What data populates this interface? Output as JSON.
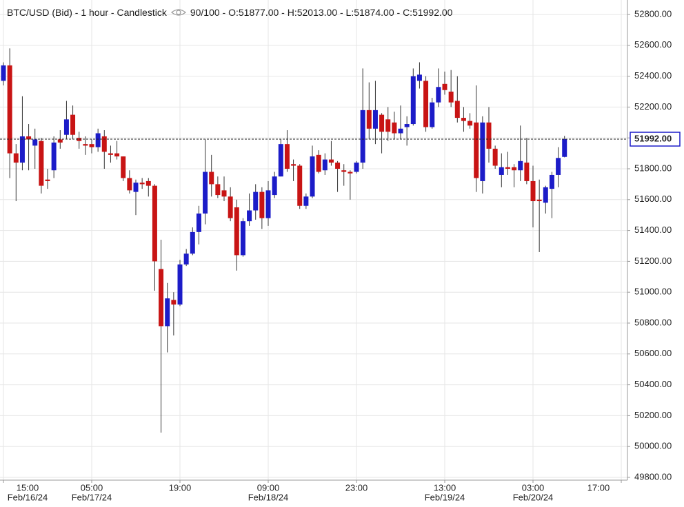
{
  "chart_data": {
    "type": "candlestick",
    "title": "BTC/USD (Bid) - 1 hour - Candlestick",
    "subtitle": "90/100 - O:51877.00 - H:52013.00 - L:51874.00 - C:51992.00",
    "up_color": "#1c1cc8",
    "down_color": "#c81414",
    "grid": true,
    "x": [
      "Feb/16/24 15:00",
      "Feb/16/24 16:00",
      "Feb/16/24 17:00",
      "Feb/16/24 18:00",
      "Feb/16/24 19:00",
      "Feb/16/24 20:00",
      "Feb/16/24 21:00",
      "Feb/16/24 22:00",
      "Feb/16/24 23:00",
      "Feb/17/24 00:00",
      "Feb/17/24 01:00",
      "Feb/17/24 02:00",
      "Feb/17/24 03:00",
      "Feb/17/24 04:00",
      "Feb/17/24 05:00",
      "Feb/17/24 06:00",
      "Feb/17/24 07:00",
      "Feb/17/24 08:00",
      "Feb/17/24 09:00",
      "Feb/17/24 10:00",
      "Feb/17/24 11:00",
      "Feb/17/24 12:00",
      "Feb/17/24 13:00",
      "Feb/17/24 14:00",
      "Feb/17/24 15:00",
      "Feb/17/24 16:00",
      "Feb/17/24 17:00",
      "Feb/17/24 18:00",
      "Feb/17/24 19:00",
      "Feb/17/24 20:00",
      "Feb/17/24 21:00",
      "Feb/17/24 22:00",
      "Feb/17/24 23:00",
      "Feb/18/24 00:00",
      "Feb/18/24 01:00",
      "Feb/18/24 02:00",
      "Feb/18/24 03:00",
      "Feb/18/24 04:00",
      "Feb/18/24 05:00",
      "Feb/18/24 06:00",
      "Feb/18/24 07:00",
      "Feb/18/24 08:00",
      "Feb/18/24 09:00",
      "Feb/18/24 10:00",
      "Feb/18/24 11:00",
      "Feb/18/24 12:00",
      "Feb/18/24 13:00",
      "Feb/18/24 14:00",
      "Feb/18/24 15:00",
      "Feb/18/24 16:00",
      "Feb/18/24 17:00",
      "Feb/18/24 18:00",
      "Feb/18/24 19:00",
      "Feb/18/24 20:00",
      "Feb/18/24 21:00",
      "Feb/18/24 22:00",
      "Feb/18/24 23:00",
      "Feb/19/24 00:00",
      "Feb/19/24 01:00",
      "Feb/19/24 02:00",
      "Feb/19/24 03:00",
      "Feb/19/24 04:00",
      "Feb/19/24 05:00",
      "Feb/19/24 06:00",
      "Feb/19/24 07:00",
      "Feb/19/24 08:00",
      "Feb/19/24 09:00",
      "Feb/19/24 10:00",
      "Feb/19/24 11:00",
      "Feb/19/24 12:00",
      "Feb/19/24 13:00",
      "Feb/19/24 14:00",
      "Feb/19/24 15:00",
      "Feb/19/24 16:00",
      "Feb/19/24 17:00",
      "Feb/19/24 18:00",
      "Feb/19/24 19:00",
      "Feb/19/24 20:00",
      "Feb/19/24 21:00",
      "Feb/19/24 22:00",
      "Feb/19/24 23:00",
      "Feb/20/24 00:00",
      "Feb/20/24 01:00",
      "Feb/20/24 02:00",
      "Feb/20/24 03:00",
      "Feb/20/24 04:00",
      "Feb/20/24 05:00",
      "Feb/20/24 06:00",
      "Feb/20/24 07:00",
      "Feb/20/24 08:00"
    ],
    "open": [
      52370,
      52470,
      51900,
      51840,
      52010,
      51950,
      51980,
      51730,
      51790,
      51990,
      52020,
      52150,
      52000,
      51960,
      51960,
      51940,
      52010,
      51900,
      51900,
      51880,
      51740,
      51650,
      51710,
      51720,
      51690,
      51150,
      50780,
      50950,
      50920,
      51180,
      51250,
      51390,
      51510,
      51780,
      51700,
      51660,
      51620,
      51550,
      51240,
      51460,
      51530,
      51650,
      51480,
      51630,
      51750,
      51960,
      51830,
      51820,
      51560,
      51620,
      51890,
      51790,
      51860,
      51840,
      51790,
      51780,
      51780,
      51840,
      52180,
      52060,
      52150,
      52120,
      52100,
      52030,
      52070,
      52090,
      52370,
      52370,
      52070,
      52230,
      52350,
      52300,
      52240,
      52130,
      52110,
      52100,
      51720,
      52100,
      51930,
      51760,
      51810,
      51810,
      51790,
      51840,
      51720,
      51600,
      51580,
      51670,
      51760,
      51877
    ],
    "high": [
      52490,
      52580,
      51960,
      52270,
      52090,
      52060,
      52000,
      51800,
      52010,
      52050,
      52240,
      52210,
      52040,
      52010,
      51990,
      52060,
      52050,
      51950,
      51980,
      51880,
      51790,
      51730,
      51740,
      51740,
      51700,
      51340,
      51060,
      51000,
      51210,
      51280,
      51420,
      51560,
      51990,
      51890,
      51750,
      51750,
      51680,
      51600,
      51480,
      51640,
      51700,
      51680,
      51720,
      51780,
      51990,
      52050,
      51860,
      51830,
      51640,
      51950,
      51920,
      51900,
      51980,
      51850,
      51830,
      51790,
      51850,
      52450,
      52360,
      52370,
      52160,
      52200,
      52170,
      52210,
      52140,
      52450,
      52490,
      52400,
      52260,
      52450,
      52430,
      52440,
      52400,
      52200,
      52160,
      52340,
      52140,
      52200,
      51950,
      51900,
      51910,
      51830,
      52080,
      52000,
      51820,
      51730,
      51690,
      51780,
      51940,
      52013
    ],
    "low": [
      52340,
      51740,
      51590,
      51790,
      51790,
      51800,
      51640,
      51670,
      51740,
      51930,
      51990,
      51990,
      51930,
      51890,
      51900,
      51910,
      51800,
      51840,
      51860,
      51720,
      51640,
      51500,
      51670,
      51620,
      51010,
      50090,
      50610,
      50720,
      50910,
      51170,
      51240,
      51310,
      51440,
      51620,
      51610,
      51590,
      51460,
      51140,
      51230,
      51430,
      51470,
      51410,
      51430,
      51610,
      51750,
      51780,
      51720,
      51540,
      51540,
      51610,
      51770,
      51760,
      51820,
      51650,
      51690,
      51600,
      51770,
      51800,
      51990,
      51960,
      51900,
      51980,
      51990,
      51990,
      51950,
      52080,
      52320,
      52040,
      52060,
      52200,
      52280,
      52200,
      52100,
      52040,
      52060,
      51650,
      51640,
      51840,
      51800,
      51680,
      51760,
      51680,
      51720,
      51700,
      51420,
      51260,
      51510,
      51480,
      51680,
      51874
    ],
    "close": [
      52470,
      51900,
      51840,
      52010,
      51990,
      51990,
      51690,
      51720,
      51970,
      51970,
      52120,
      52020,
      51980,
      51950,
      51940,
      52030,
      51910,
      51890,
      51880,
      51740,
      51660,
      51710,
      51700,
      51690,
      51200,
      50780,
      50960,
      50920,
      51180,
      51250,
      51390,
      51510,
      51780,
      51700,
      51630,
      51620,
      51480,
      51240,
      51460,
      51530,
      51650,
      51480,
      51660,
      51750,
      51960,
      51800,
      51820,
      51560,
      51620,
      51880,
      51780,
      51860,
      51840,
      51800,
      51780,
      51770,
      51840,
      52180,
      52060,
      52180,
      52040,
      52040,
      52030,
      52060,
      52090,
      52400,
      52410,
      52070,
      52230,
      52330,
      52310,
      52230,
      52130,
      52110,
      52080,
      51740,
      52100,
      51930,
      51820,
      51810,
      51800,
      51790,
      51850,
      51720,
      51590,
      51590,
      51680,
      51760,
      51870,
      51992
    ],
    "ylim": [
      49800,
      52800
    ],
    "yticks": [
      {
        "value": 49800,
        "label": "49800.00"
      },
      {
        "value": 50000,
        "label": "50000.00"
      },
      {
        "value": 50200,
        "label": "50200.00"
      },
      {
        "value": 50400,
        "label": "50400.00"
      },
      {
        "value": 50600,
        "label": "50600.00"
      },
      {
        "value": 50800,
        "label": "50800.00"
      },
      {
        "value": 51000,
        "label": "51000.00"
      },
      {
        "value": 51200,
        "label": "51200.00"
      },
      {
        "value": 51400,
        "label": "51400.00"
      },
      {
        "value": 51600,
        "label": "51600.00"
      },
      {
        "value": 51800,
        "label": "51800.00"
      },
      {
        "value": 52000,
        "label": "52000.00"
      },
      {
        "value": 52200,
        "label": "52200.00"
      },
      {
        "value": 52400,
        "label": "52400.00"
      },
      {
        "value": 52600,
        "label": "52600.00"
      },
      {
        "value": 52800,
        "label": "52800.00"
      }
    ],
    "xticks": [
      {
        "value": "Feb/16/24 15:00",
        "label": "15:00",
        "date": "Feb/16/24"
      },
      {
        "value": "Feb/17/24 05:00",
        "label": "05:00",
        "date": "Feb/17/24"
      },
      {
        "value": "Feb/17/24 19:00",
        "label": "19:00"
      },
      {
        "value": "Feb/18/24 09:00",
        "label": "09:00",
        "date": "Feb/18/24"
      },
      {
        "value": "Feb/18/24 23:00",
        "label": "23:00"
      },
      {
        "value": "Feb/19/24 13:00",
        "label": "13:00",
        "date": "Feb/19/24"
      },
      {
        "value": "Feb/20/24 03:00",
        "label": "03:00",
        "date": "Feb/20/24"
      },
      {
        "value": "Feb/20/24 17:00",
        "label": "17:00"
      }
    ],
    "last_price": {
      "value": 51992,
      "label": "51992.00"
    }
  }
}
